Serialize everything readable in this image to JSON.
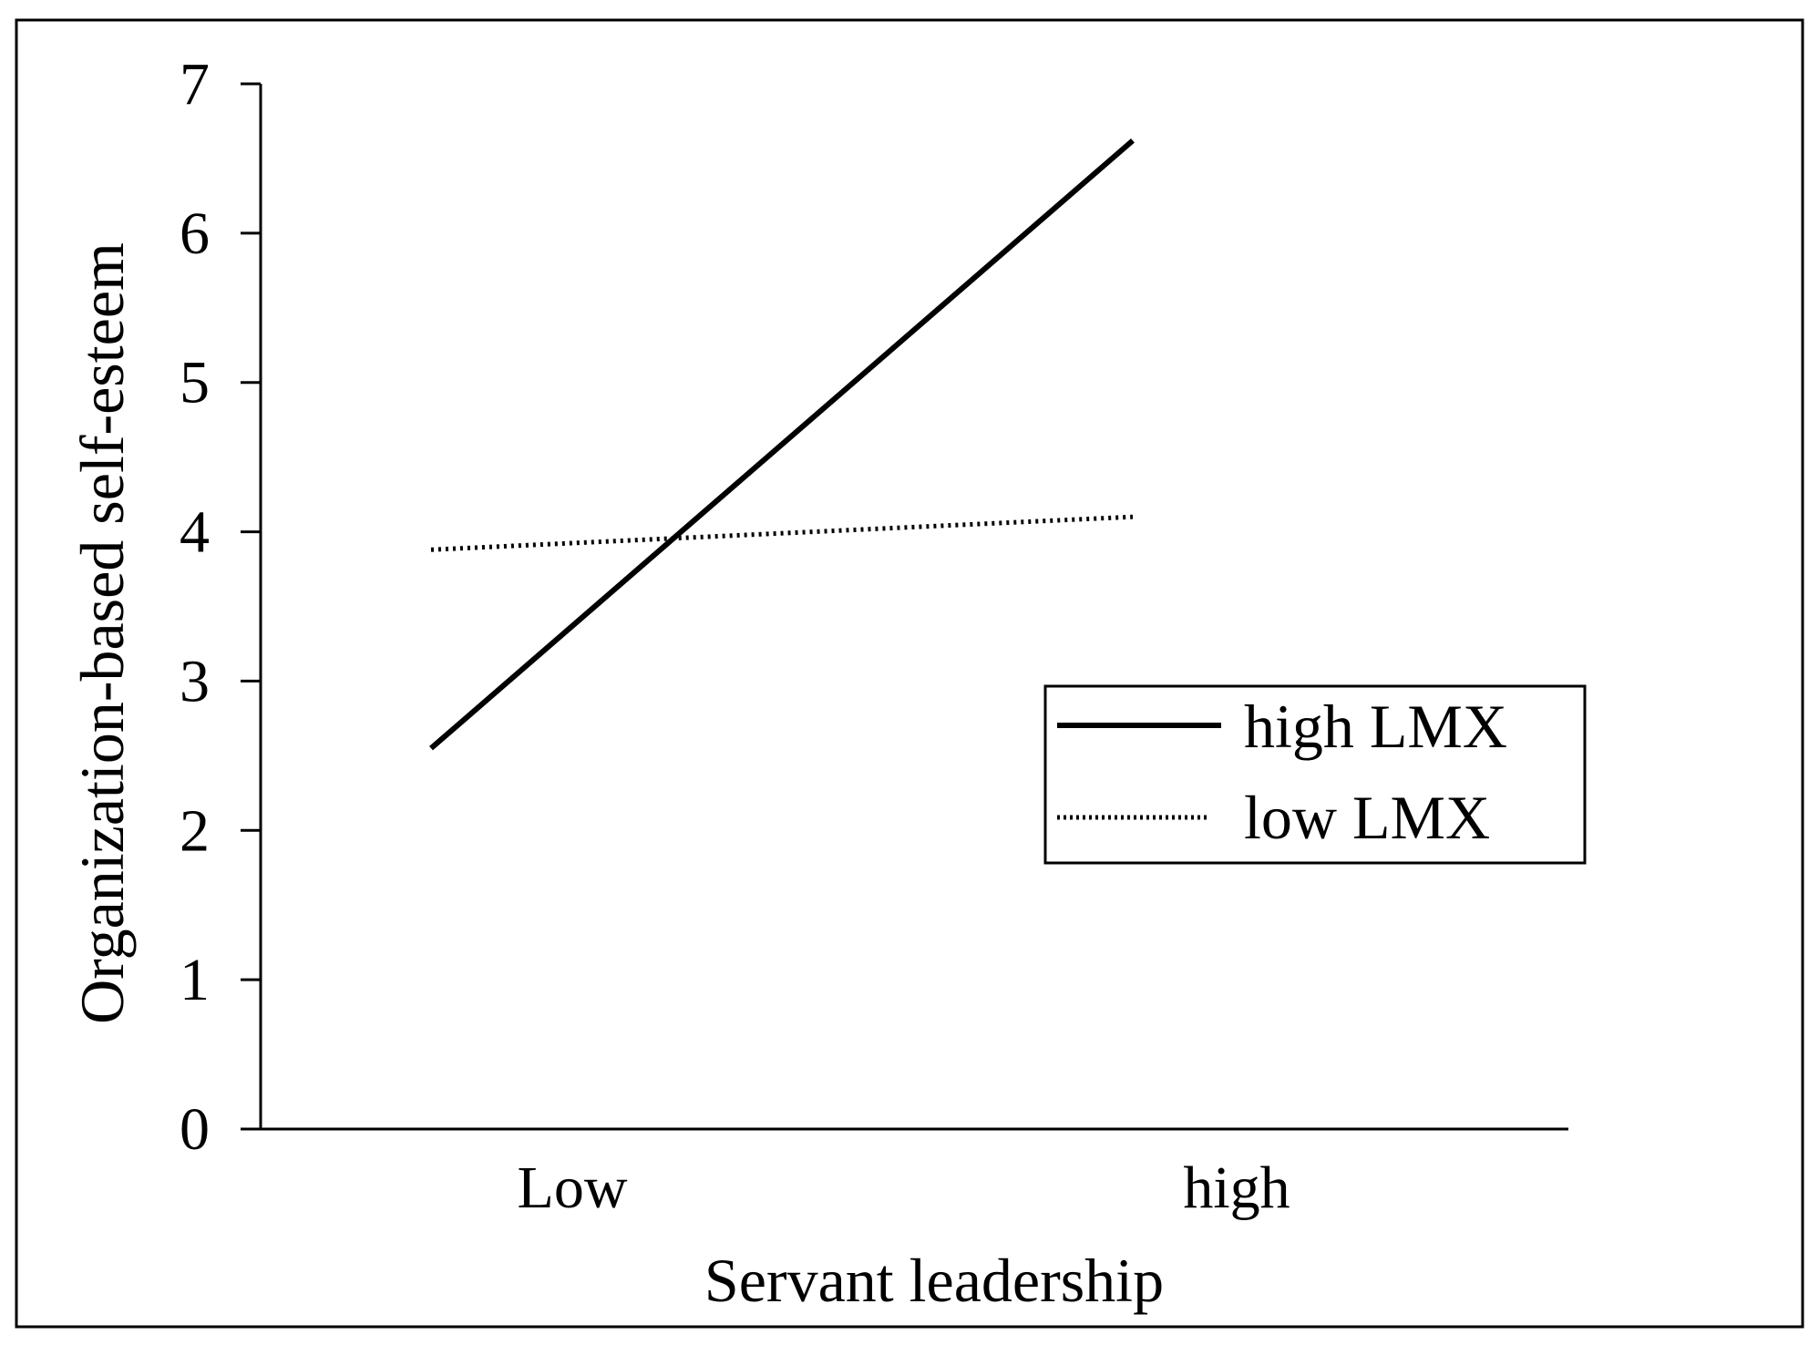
{
  "chart_data": {
    "type": "line",
    "title": "",
    "xlabel": "Servant leadership",
    "ylabel": "Organization-based self-esteem",
    "categories": [
      "Low",
      "high"
    ],
    "ylim": [
      0,
      7
    ],
    "yticks": [
      "0",
      "1",
      "2",
      "3",
      "4",
      "5",
      "6",
      "7"
    ],
    "grid": false,
    "legend_position": "right",
    "series": [
      {
        "name": "high LMX",
        "values": [
          2.55,
          6.62
        ],
        "style": "solid",
        "color": "#000000"
      },
      {
        "name": "low LMX",
        "values": [
          3.88,
          4.1
        ],
        "style": "dotted",
        "color": "#000000"
      }
    ]
  }
}
